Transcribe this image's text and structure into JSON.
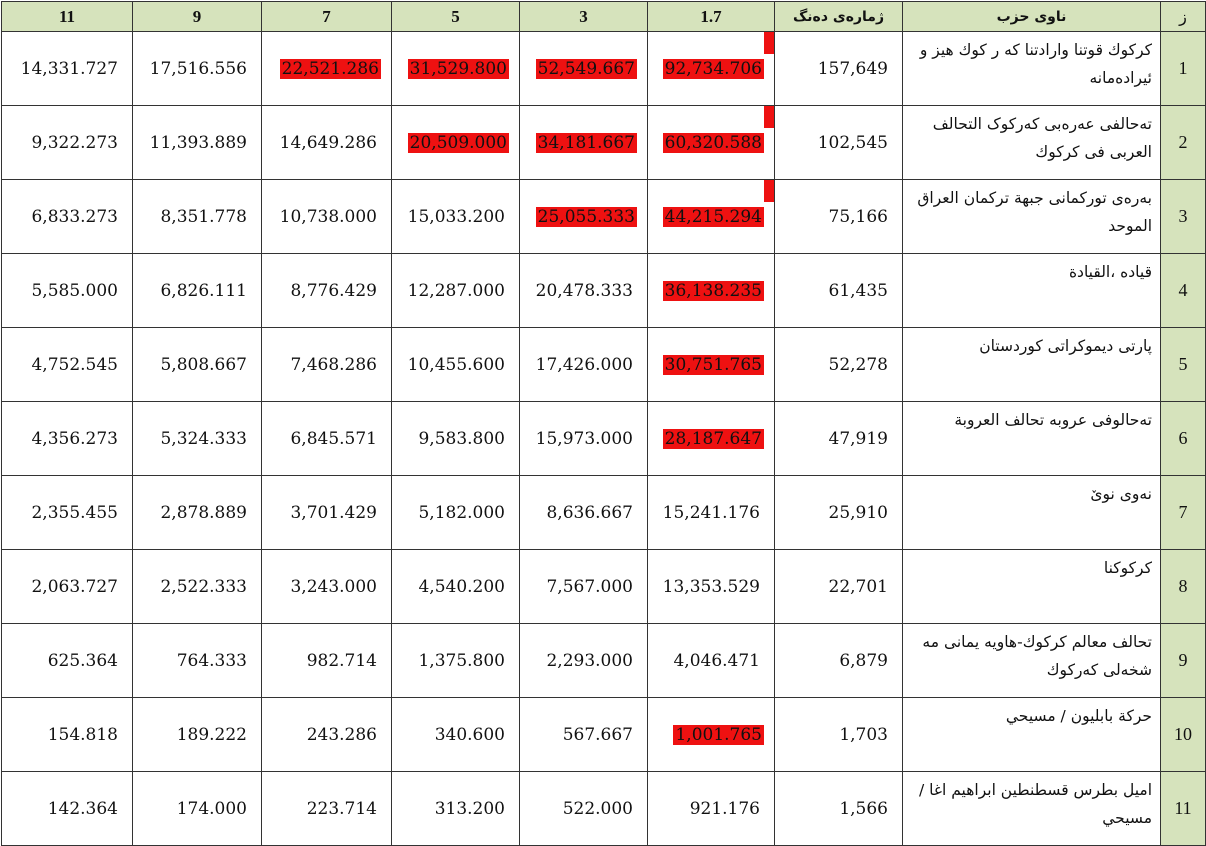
{
  "headers": [
    "11",
    "9",
    "7",
    "5",
    "3",
    "1.7",
    "ژمارەی دەنگ",
    "ناوی حزب",
    "ز"
  ],
  "highlight_color": "#ee1111",
  "header_bg": "#d6e3bc",
  "rows": [
    {
      "index": "1",
      "name": "كركوك قوتنا وارادتنا كه ر كوك هيز و ئيرادەمانه",
      "votes": "157,649",
      "c17": "92,734.706",
      "c3": "52,549.667",
      "c5": "31,529.800",
      "c7": "22,521.286",
      "c9": "17,516.556",
      "c11": "14,331.727",
      "highlighted": [
        "c17",
        "c3",
        "c5",
        "c7"
      ],
      "marker": true
    },
    {
      "index": "2",
      "name": "تەحالفی عەرەبی کەرکوک التحالف العربی فی کرکوك",
      "votes": "102,545",
      "c17": "60,320.588",
      "c3": "34,181.667",
      "c5": "20,509.000",
      "c7": "14,649.286",
      "c9": "11,393.889",
      "c11": "9,322.273",
      "highlighted": [
        "c17",
        "c3",
        "c5"
      ],
      "marker": true
    },
    {
      "index": "3",
      "name": "بەرەی تورکمانی جبهة تركمان العراق الموحد",
      "votes": "75,166",
      "c17": "44,215.294",
      "c3": "25,055.333",
      "c5": "15,033.200",
      "c7": "10,738.000",
      "c9": "8,351.778",
      "c11": "6,833.273",
      "highlighted": [
        "c17",
        "c3"
      ],
      "marker": true
    },
    {
      "index": "4",
      "name": "قیاده ،القیادة",
      "votes": "61,435",
      "c17": "36,138.235",
      "c3": "20,478.333",
      "c5": "12,287.000",
      "c7": "8,776.429",
      "c9": "6,826.111",
      "c11": "5,585.000",
      "highlighted": [
        "c17"
      ],
      "marker": false
    },
    {
      "index": "5",
      "name": "پارتی دیموکراتی کوردستان",
      "votes": "52,278",
      "c17": "30,751.765",
      "c3": "17,426.000",
      "c5": "10,455.600",
      "c7": "7,468.286",
      "c9": "5,808.667",
      "c11": "4,752.545",
      "highlighted": [
        "c17"
      ],
      "marker": false
    },
    {
      "index": "6",
      "name": "تەحالوفی عروبه تحالف العروبة",
      "votes": "47,919",
      "c17": "28,187.647",
      "c3": "15,973.000",
      "c5": "9,583.800",
      "c7": "6,845.571",
      "c9": "5,324.333",
      "c11": "4,356.273",
      "highlighted": [
        "c17"
      ],
      "marker": false
    },
    {
      "index": "7",
      "name": "نەوی نوێ",
      "votes": "25,910",
      "c17": "15,241.176",
      "c3": "8,636.667",
      "c5": "5,182.000",
      "c7": "3,701.429",
      "c9": "2,878.889",
      "c11": "2,355.455",
      "highlighted": [],
      "marker": false
    },
    {
      "index": "8",
      "name": "کرکوکنا",
      "votes": "22,701",
      "c17": "13,353.529",
      "c3": "7,567.000",
      "c5": "4,540.200",
      "c7": "3,243.000",
      "c9": "2,522.333",
      "c11": "2,063.727",
      "highlighted": [],
      "marker": false
    },
    {
      "index": "9",
      "name": "تحالف معالم کرکوك-هاويه يمانى مه شخەلی کەرکوك",
      "votes": "6,879",
      "c17": "4,046.471",
      "c3": "2,293.000",
      "c5": "1,375.800",
      "c7": "982.714",
      "c9": "764.333",
      "c11": "625.364",
      "highlighted": [],
      "marker": false
    },
    {
      "index": "10",
      "name": "حركة بابليون / مسيحي",
      "votes": "1,703",
      "c17": "1,001.765",
      "c3": "567.667",
      "c5": "340.600",
      "c7": "243.286",
      "c9": "189.222",
      "c11": "154.818",
      "highlighted": [
        "c17"
      ],
      "marker": false
    },
    {
      "index": "11",
      "name": "اميل بطرس قسطنطين ابراهيم اغا / مسيحي",
      "votes": "1,566",
      "c17": "921.176",
      "c3": "522.000",
      "c5": "313.200",
      "c7": "223.714",
      "c9": "174.000",
      "c11": "142.364",
      "highlighted": [],
      "marker": false
    }
  ]
}
